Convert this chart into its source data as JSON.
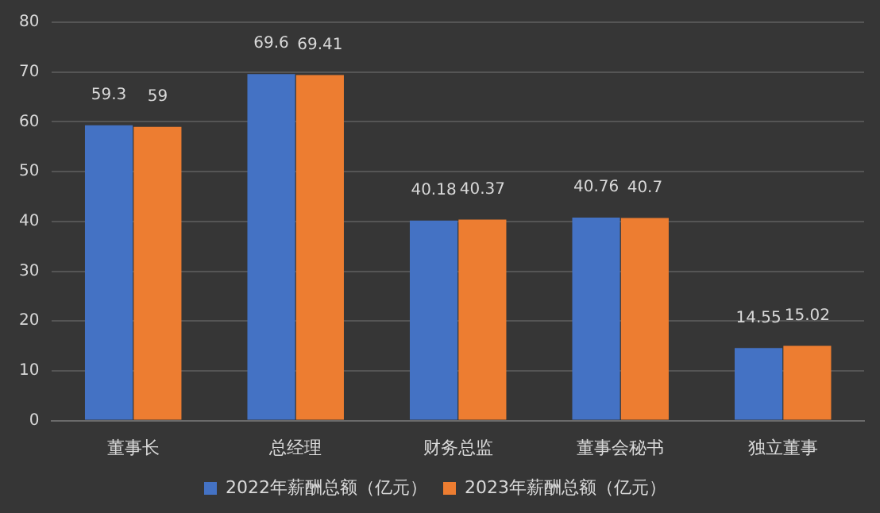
{
  "chart_data": {
    "type": "bar",
    "categories": [
      "董事长",
      "总经理",
      "财务总监",
      "董事会秘书",
      "独立董事"
    ],
    "series": [
      {
        "name": "2022年薪酬总额（亿元）",
        "color": "#4472c4",
        "values": [
          59.3,
          69.6,
          40.18,
          40.76,
          14.55
        ]
      },
      {
        "name": "2023年薪酬总额（亿元）",
        "color": "#ed7d31",
        "values": [
          59,
          69.41,
          40.37,
          40.7,
          15.02
        ]
      }
    ],
    "ylim": [
      0,
      80
    ],
    "yticks": [
      0,
      10,
      20,
      30,
      40,
      50,
      60,
      70,
      80
    ],
    "grid": "y",
    "legend": "bottom",
    "data_labels": true
  }
}
